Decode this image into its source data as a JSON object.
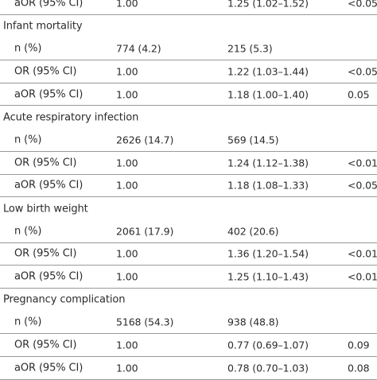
{
  "rows": [
    {
      "type": "data",
      "label": "aOR (95% CI)",
      "ref": "1.00",
      "exp": "1.25 (1.02–1.52)",
      "p": "<0.05"
    },
    {
      "type": "section",
      "label": "Infant mortality"
    },
    {
      "type": "data",
      "label": "n (%)",
      "ref": "774 (4.2)",
      "exp": "215 (5.3)",
      "p": ""
    },
    {
      "type": "data",
      "label": "OR (95% CI)",
      "ref": "1.00",
      "exp": "1.22 (1.03–1.44)",
      "p": "<0.05"
    },
    {
      "type": "data",
      "label": "aOR (95% CI)",
      "ref": "1.00",
      "exp": "1.18 (1.00–1.40)",
      "p": "0.05"
    },
    {
      "type": "section",
      "label": "Acute respiratory infection"
    },
    {
      "type": "data",
      "label": "n (%)",
      "ref": "2626 (14.7)",
      "exp": "569 (14.5)",
      "p": ""
    },
    {
      "type": "data",
      "label": "OR (95% CI)",
      "ref": "1.00",
      "exp": "1.24 (1.12–1.38)",
      "p": "<0.01"
    },
    {
      "type": "data",
      "label": "aOR (95% CI)",
      "ref": "1.00",
      "exp": "1.18 (1.08–1.33)",
      "p": "<0.05"
    },
    {
      "type": "section",
      "label": "Low birth weight"
    },
    {
      "type": "data",
      "label": "n (%)",
      "ref": "2061 (17.9)",
      "exp": "402 (20.6)",
      "p": ""
    },
    {
      "type": "data",
      "label": "OR (95% CI)",
      "ref": "1.00",
      "exp": "1.36 (1.20–1.54)",
      "p": "<0.01"
    },
    {
      "type": "data",
      "label": "aOR (95% CI)",
      "ref": "1.00",
      "exp": "1.25 (1.10–1.43)",
      "p": "<0.01"
    },
    {
      "type": "section",
      "label": "Pregnancy complication"
    },
    {
      "type": "data",
      "label": "n (%)",
      "ref": "5168 (54.3)",
      "exp": "938 (48.8)",
      "p": ""
    },
    {
      "type": "data",
      "label": "OR (95% CI)",
      "ref": "1.00",
      "exp": "0.77 (0.69–1.07)",
      "p": "0.09"
    },
    {
      "type": "data",
      "label": "aOR (95% CI)",
      "ref": "1.00",
      "exp": "0.78 (0.70–1.03)",
      "p": "0.08"
    }
  ]
}
